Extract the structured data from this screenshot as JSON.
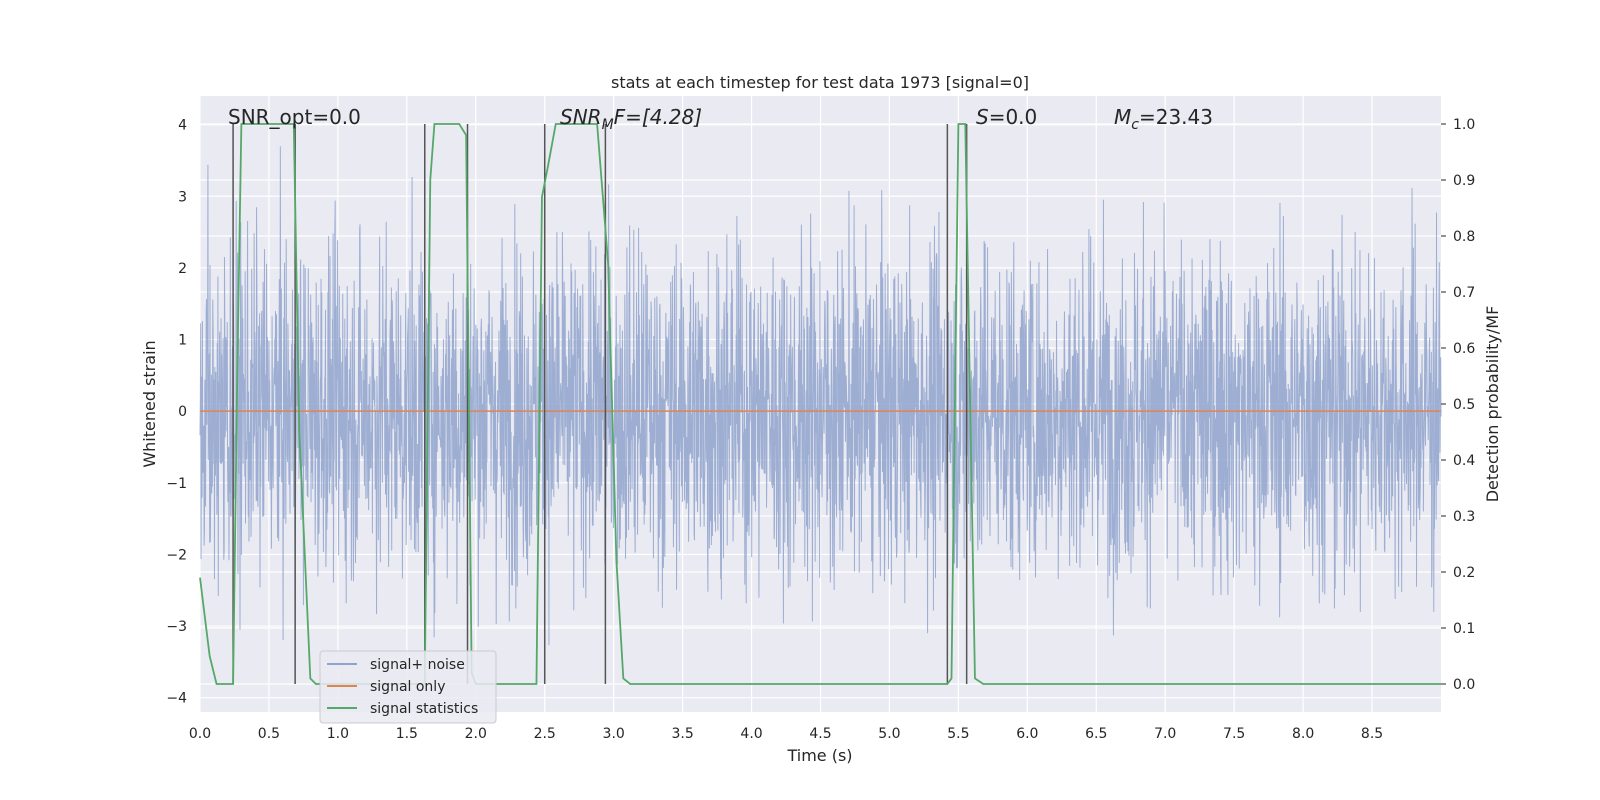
{
  "chart_data": {
    "type": "line",
    "title": "stats at each timestep for test data 1973 [signal=0]",
    "xlabel": "Time (s)",
    "ylabel": "Whitened strain",
    "y2label": "Detection probability/MF",
    "xlim": [
      0,
      9
    ],
    "ylim": [
      -4.2,
      4.4
    ],
    "y2lim": [
      -0.05,
      1.05
    ],
    "xticks": [
      "0.0",
      "0.5",
      "1.0",
      "1.5",
      "2.0",
      "2.5",
      "3.0",
      "3.5",
      "4.0",
      "4.5",
      "5.0",
      "5.5",
      "6.0",
      "6.5",
      "7.0",
      "7.5",
      "8.0",
      "8.5"
    ],
    "yticks": [
      "−4",
      "−3",
      "−2",
      "−1",
      "0",
      "1",
      "2",
      "3",
      "4"
    ],
    "y2ticks": [
      "0.0",
      "0.1",
      "0.2",
      "0.3",
      "0.4",
      "0.5",
      "0.6",
      "0.7",
      "0.8",
      "0.9",
      "1.0"
    ],
    "grid": true,
    "legend_position": "lower-left",
    "annotations": {
      "snr_opt": "SNR_opt=0.0",
      "snr_mf_base": "SNR",
      "snr_mf_sub": "M",
      "snr_mf_rest": "F=[4.28]",
      "s_italic": "S",
      "s_rest": "=0.0",
      "mc_base": "M",
      "mc_sub": "c",
      "mc_rest": "=23.43"
    },
    "series": [
      {
        "name": "signal+ noise",
        "color": "#8fa3cc",
        "style": "noise",
        "amplitude_range": [
          -3.9,
          4.0
        ]
      },
      {
        "name": "signal only",
        "color": "#dd8452",
        "x": [
          0,
          9
        ],
        "y": [
          0,
          0
        ]
      },
      {
        "name": "signal statistics",
        "color": "#55a868",
        "axis": "right",
        "x": [
          0.0,
          0.07,
          0.12,
          0.24,
          0.27,
          0.3,
          0.68,
          0.72,
          0.8,
          0.84,
          1.63,
          1.67,
          1.7,
          1.88,
          1.93,
          1.97,
          2.0,
          2.44,
          2.48,
          2.52,
          2.58,
          2.88,
          2.96,
          3.02,
          3.07,
          3.12,
          5.42,
          5.45,
          5.5,
          5.55,
          5.62,
          5.68,
          9.0
        ],
        "y": [
          0.19,
          0.05,
          0.0,
          0.0,
          0.55,
          1.0,
          1.0,
          0.45,
          0.01,
          0.0,
          0.0,
          0.9,
          1.0,
          1.0,
          0.98,
          0.02,
          0.0,
          0.0,
          0.87,
          0.92,
          1.0,
          1.0,
          0.75,
          0.22,
          0.01,
          0.0,
          0.0,
          0.01,
          1.0,
          1.0,
          0.01,
          0.0,
          0.0
        ]
      }
    ],
    "vlines": [
      0.24,
      0.69,
      1.63,
      1.94,
      2.5,
      2.94,
      5.42,
      5.56
    ],
    "vline_color": "#555555"
  }
}
